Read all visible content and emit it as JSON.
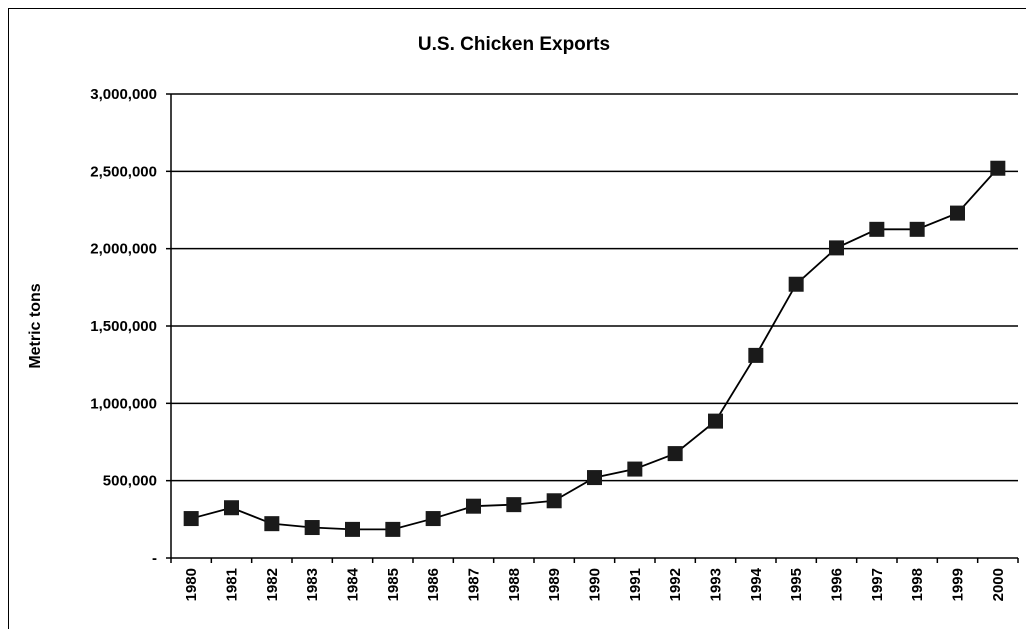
{
  "chart_data": {
    "type": "line",
    "title": "U.S. Chicken Exports",
    "xlabel": "",
    "ylabel": "Metric tons",
    "categories": [
      "1980",
      "1981",
      "1982",
      "1983",
      "1984",
      "1985",
      "1986",
      "1987",
      "1988",
      "1989",
      "1990",
      "1991",
      "1992",
      "1993",
      "1994",
      "1995",
      "1996",
      "1997",
      "1998",
      "1999",
      "2000"
    ],
    "series": [
      {
        "values": [
          255000,
          325000,
          222000,
          197000,
          185000,
          185000,
          255000,
          335000,
          345000,
          370000,
          520000,
          575000,
          675000,
          885000,
          1310000,
          1770000,
          2005000,
          2125000,
          2125000,
          2230000,
          2520000
        ]
      }
    ],
    "ylim": [
      0,
      3000000
    ],
    "yticks": [
      0,
      500000,
      1000000,
      1500000,
      2000000,
      2500000,
      3000000
    ],
    "ytick_labels": [
      "-",
      "500,000",
      "1,000,000",
      "1,500,000",
      "2,000,000",
      "2,500,000",
      "3,000,000"
    ],
    "grid": true,
    "legend": "none",
    "colors": {
      "line": "#000000",
      "marker": "#1a1a1a",
      "grid": "#000000"
    },
    "marker": "square"
  }
}
